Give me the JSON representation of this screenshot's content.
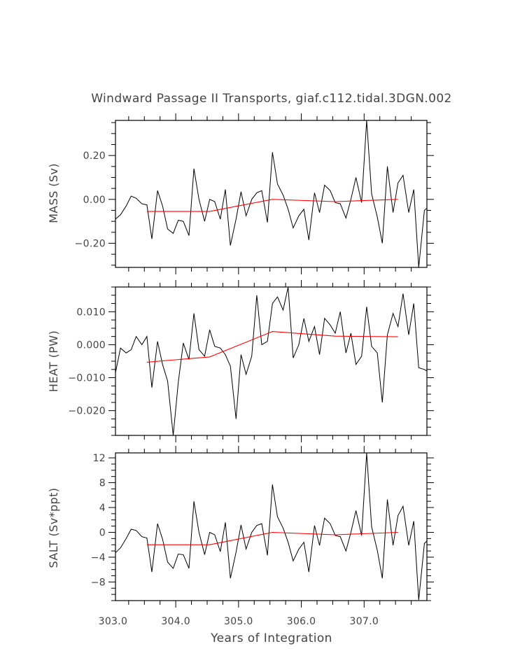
{
  "title": "Windward Passage II Transports, giaf.c112.tidal.3DGN.002",
  "xlabel": "Years of Integration",
  "xticks": [
    {
      "value": 303.0,
      "label": "303.0"
    },
    {
      "value": 304.0,
      "label": "304.0"
    },
    {
      "value": 305.0,
      "label": "305.0"
    },
    {
      "value": 306.0,
      "label": "306.0"
    },
    {
      "value": 307.0,
      "label": "307.0"
    }
  ],
  "colors": {
    "raw": "#000000",
    "smooth": "#ff0000",
    "frame": "#000000",
    "text": "#444444"
  },
  "chart_data": [
    {
      "type": "line",
      "title": "Windward Passage II Transports, giaf.c112.tidal.3DGN.002",
      "ylabel": "MASS (Sv)",
      "xlabel": "Years of Integration",
      "xlim": [
        303.04,
        308.0
      ],
      "ylim": [
        -0.31,
        0.36
      ],
      "yticks": [
        {
          "value": 0.2,
          "label": "0.20"
        },
        {
          "value": 0.0,
          "label": "0.00"
        },
        {
          "value": -0.2,
          "label": "−0.20"
        }
      ],
      "series": [
        {
          "name": "raw",
          "color": "#000000",
          "x": [
            303.04,
            303.12,
            303.21,
            303.29,
            303.37,
            303.46,
            303.54,
            303.62,
            303.71,
            303.79,
            303.87,
            303.96,
            304.04,
            304.12,
            304.21,
            304.29,
            304.37,
            304.46,
            304.54,
            304.62,
            304.71,
            304.79,
            304.87,
            304.96,
            305.04,
            305.12,
            305.21,
            305.29,
            305.37,
            305.46,
            305.54,
            305.62,
            305.71,
            305.79,
            305.87,
            305.96,
            306.04,
            306.12,
            306.21,
            306.29,
            306.37,
            306.46,
            306.54,
            306.62,
            306.71,
            306.79,
            306.87,
            306.96,
            307.04,
            307.12,
            307.21,
            307.29,
            307.37,
            307.46,
            307.54,
            307.62,
            307.71,
            307.79,
            307.87,
            307.96,
            308.0
          ],
          "values": [
            -0.09,
            -0.07,
            -0.03,
            0.015,
            0.005,
            -0.02,
            -0.025,
            -0.18,
            0.04,
            -0.03,
            -0.135,
            -0.155,
            -0.095,
            -0.1,
            -0.165,
            0.14,
            0.0,
            -0.1,
            0.0,
            -0.01,
            -0.09,
            0.045,
            -0.21,
            -0.09,
            0.035,
            -0.075,
            0.0,
            0.03,
            0.04,
            -0.105,
            0.215,
            0.07,
            0.02,
            -0.045,
            -0.13,
            -0.075,
            -0.045,
            -0.185,
            0.03,
            -0.06,
            0.065,
            0.04,
            -0.015,
            -0.02,
            -0.085,
            0.0,
            0.1,
            -0.015,
            0.36,
            0.025,
            -0.08,
            -0.2,
            0.15,
            -0.06,
            0.075,
            0.11,
            -0.06,
            0.045,
            -0.31,
            -0.05,
            -0.04
          ]
        },
        {
          "name": "smoothed",
          "color": "#ff0000",
          "x": [
            303.54,
            304.54,
            305.54,
            306.54,
            307.54
          ],
          "values": [
            -0.055,
            -0.055,
            0.0,
            -0.01,
            0.0
          ]
        }
      ]
    },
    {
      "type": "line",
      "ylabel": "HEAT (PW)",
      "xlabel": "Years of Integration",
      "xlim": [
        303.04,
        308.0
      ],
      "ylim": [
        -0.0275,
        0.0175
      ],
      "yticks": [
        {
          "value": 0.01,
          "label": "0.010"
        },
        {
          "value": 0.0,
          "label": "0.000"
        },
        {
          "value": -0.01,
          "label": "−0.010"
        },
        {
          "value": -0.02,
          "label": "−0.020"
        }
      ],
      "series": [
        {
          "name": "raw",
          "color": "#000000",
          "x": [
            303.04,
            303.12,
            303.21,
            303.29,
            303.37,
            303.46,
            303.54,
            303.62,
            303.71,
            303.79,
            303.87,
            303.96,
            304.04,
            304.12,
            304.21,
            304.29,
            304.37,
            304.46,
            304.54,
            304.62,
            304.71,
            304.79,
            304.87,
            304.96,
            305.04,
            305.12,
            305.21,
            305.29,
            305.37,
            305.46,
            305.54,
            305.62,
            305.71,
            305.79,
            305.87,
            305.96,
            306.04,
            306.12,
            306.21,
            306.29,
            306.37,
            306.46,
            306.54,
            306.62,
            306.71,
            306.79,
            306.87,
            306.96,
            307.04,
            307.12,
            307.21,
            307.29,
            307.37,
            307.46,
            307.54,
            307.62,
            307.71,
            307.79,
            307.87,
            307.96,
            308.0
          ],
          "values": [
            -0.0085,
            -0.001,
            -0.0025,
            -0.0015,
            0.0025,
            0.0,
            0.0025,
            -0.013,
            0.001,
            -0.006,
            -0.011,
            -0.0275,
            -0.0115,
            0.0005,
            -0.0045,
            0.0095,
            -0.0015,
            -0.0035,
            0.0045,
            -0.0005,
            -0.001,
            -0.003,
            -0.0065,
            -0.0225,
            -0.003,
            -0.009,
            -0.0035,
            0.015,
            0.0,
            0.001,
            0.0125,
            0.0145,
            0.0105,
            0.0175,
            -0.004,
            0.0,
            0.008,
            0.001,
            0.0055,
            -0.003,
            0.008,
            0.006,
            0.0035,
            0.01,
            -0.0025,
            0.0035,
            -0.006,
            -0.0035,
            0.0115,
            -0.0005,
            -0.0025,
            -0.0175,
            0.003,
            0.0095,
            0.0055,
            0.0155,
            0.003,
            0.0125,
            -0.007,
            -0.0075,
            -0.008
          ]
        },
        {
          "name": "smoothed",
          "color": "#ff0000",
          "x": [
            303.54,
            304.54,
            305.54,
            306.54,
            307.54
          ],
          "values": [
            -0.0053,
            -0.0037,
            0.004,
            0.0026,
            0.0024
          ]
        }
      ]
    },
    {
      "type": "line",
      "ylabel": "SALT (Sv*ppt)",
      "xlabel": "Years of Integration",
      "xlim": [
        303.04,
        308.0
      ],
      "ylim": [
        -11,
        12.8
      ],
      "yticks": [
        {
          "value": 12,
          "label": "12"
        },
        {
          "value": 8,
          "label": "8"
        },
        {
          "value": 4,
          "label": "4"
        },
        {
          "value": 0,
          "label": "0"
        },
        {
          "value": -4,
          "label": "−4"
        },
        {
          "value": -8,
          "label": "−8"
        }
      ],
      "series": [
        {
          "name": "raw",
          "color": "#000000",
          "x": [
            303.04,
            303.12,
            303.21,
            303.29,
            303.37,
            303.46,
            303.54,
            303.62,
            303.71,
            303.79,
            303.87,
            303.96,
            304.04,
            304.12,
            304.21,
            304.29,
            304.37,
            304.46,
            304.54,
            304.62,
            304.71,
            304.79,
            304.87,
            304.96,
            305.04,
            305.12,
            305.21,
            305.29,
            305.37,
            305.46,
            305.54,
            305.62,
            305.71,
            305.79,
            305.87,
            305.96,
            306.04,
            306.12,
            306.21,
            306.29,
            306.37,
            306.46,
            306.54,
            306.62,
            306.71,
            306.79,
            306.87,
            306.96,
            307.04,
            307.12,
            307.21,
            307.29,
            307.37,
            307.46,
            307.54,
            307.62,
            307.71,
            307.79,
            307.87,
            307.96,
            308.0
          ],
          "values": [
            -3.3,
            -2.5,
            -1.0,
            0.5,
            0.3,
            -0.7,
            -0.9,
            -6.4,
            1.4,
            -1.1,
            -4.8,
            -5.8,
            -3.5,
            -3.6,
            -5.8,
            5.0,
            0.0,
            -3.6,
            0.0,
            -0.4,
            -3.1,
            1.6,
            -7.4,
            -3.2,
            1.2,
            -2.7,
            0.0,
            1.1,
            1.4,
            -3.7,
            7.7,
            2.5,
            0.7,
            -1.6,
            -4.6,
            -2.7,
            -1.6,
            -6.4,
            1.1,
            -2.1,
            2.3,
            1.4,
            -0.5,
            -0.7,
            -3.0,
            0.0,
            3.5,
            -0.5,
            12.8,
            0.9,
            -2.9,
            -7.4,
            5.3,
            -2.1,
            2.7,
            4.2,
            -2.1,
            1.8,
            -10.9,
            -1.8,
            -1.4
          ]
        },
        {
          "name": "smoothed",
          "color": "#ff0000",
          "x": [
            303.54,
            304.54,
            305.54,
            306.54,
            307.54
          ],
          "values": [
            -2.0,
            -2.0,
            0.0,
            -0.4,
            0.0
          ]
        }
      ]
    }
  ]
}
